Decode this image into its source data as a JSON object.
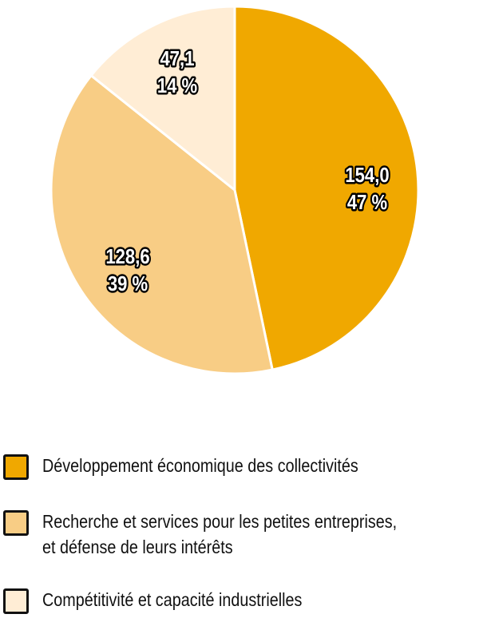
{
  "chart_data": {
    "type": "pie",
    "slices": [
      {
        "name": "Développement économique des collectivités",
        "value": 154.0,
        "value_label": "154,0",
        "percent_label": "47 %",
        "color": "#F0A800"
      },
      {
        "name": "Recherche et services pour les petites entreprises, et défense de leurs intérêts",
        "name_lines": [
          "Recherche et services pour les petites entreprises,",
          "et défense de leurs intérêts"
        ],
        "value": 128.6,
        "value_label": "128,6",
        "percent_label": "39 %",
        "color": "#F8CD85"
      },
      {
        "name": "Compétitivité et capacité industrielles",
        "value": 47.1,
        "value_label": "47,1",
        "percent_label": "14 %",
        "color": "#FFEDD5"
      }
    ],
    "start": "top",
    "direction": "clockwise",
    "legend_position": "bottom"
  }
}
